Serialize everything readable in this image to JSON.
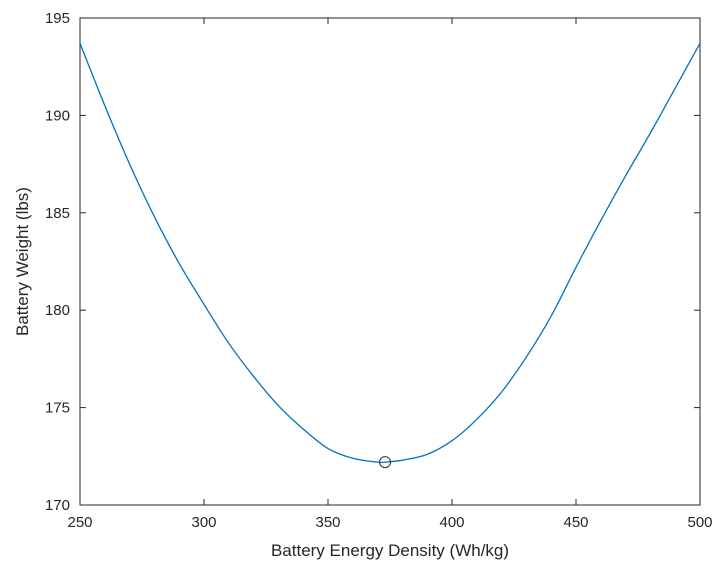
{
  "chart_data": {
    "type": "line",
    "title": "",
    "xlabel": "Battery Energy Density (Wh/kg)",
    "ylabel": "Battery Weight (lbs)",
    "xlim": [
      250,
      500
    ],
    "ylim": [
      170,
      195
    ],
    "xticks": [
      250,
      300,
      350,
      400,
      450,
      500
    ],
    "yticks": [
      170,
      175,
      180,
      185,
      190,
      195
    ],
    "grid": false,
    "legend": "none",
    "line_color": "#0072bd",
    "series": [
      {
        "x": [
          250,
          260,
          270,
          280,
          290,
          300,
          310,
          320,
          330,
          340,
          350,
          360,
          370,
          373,
          380,
          390,
          400,
          410,
          420,
          430,
          440,
          450,
          460,
          470,
          480,
          490,
          500
        ],
        "y": [
          193.7,
          190.5,
          187.5,
          184.8,
          182.4,
          180.3,
          178.3,
          176.6,
          175.1,
          173.9,
          172.9,
          172.4,
          172.2,
          172.2,
          172.3,
          172.6,
          173.3,
          174.4,
          175.8,
          177.6,
          179.7,
          182.2,
          184.6,
          186.9,
          189.1,
          191.4,
          193.7
        ]
      }
    ],
    "marker": {
      "x": 373,
      "y": 172.2,
      "shape": "open-circle"
    }
  }
}
